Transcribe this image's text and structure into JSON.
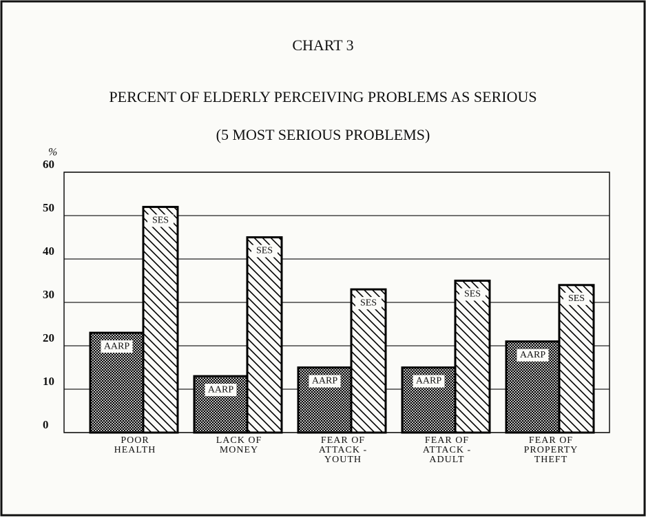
{
  "chart_data": {
    "type": "bar",
    "title": "CHART 3",
    "subtitle": "PERCENT OF ELDERLY PERCEIVING PROBLEMS AS SERIOUS",
    "subtitle2": "(5 MOST SERIOUS PROBLEMS)",
    "y_label": "%",
    "categories": [
      "POOR\nHEALTH",
      "LACK OF\nMONEY",
      "FEAR OF\nATTACK -\nYOUTH",
      "FEAR OF\nATTACK -\nADULT",
      "FEAR OF\nPROPERTY\nTHEFT"
    ],
    "series": [
      {
        "name": "AARP",
        "color": "#000000",
        "values": [
          23,
          13,
          15,
          15,
          21
        ]
      },
      {
        "name": "SES",
        "color": "#000000",
        "values": [
          52,
          45,
          33,
          35,
          34
        ]
      }
    ],
    "ylim": [
      0,
      60
    ],
    "yticks": [
      0,
      10,
      20,
      30,
      40,
      50,
      60
    ],
    "grid": true
  }
}
